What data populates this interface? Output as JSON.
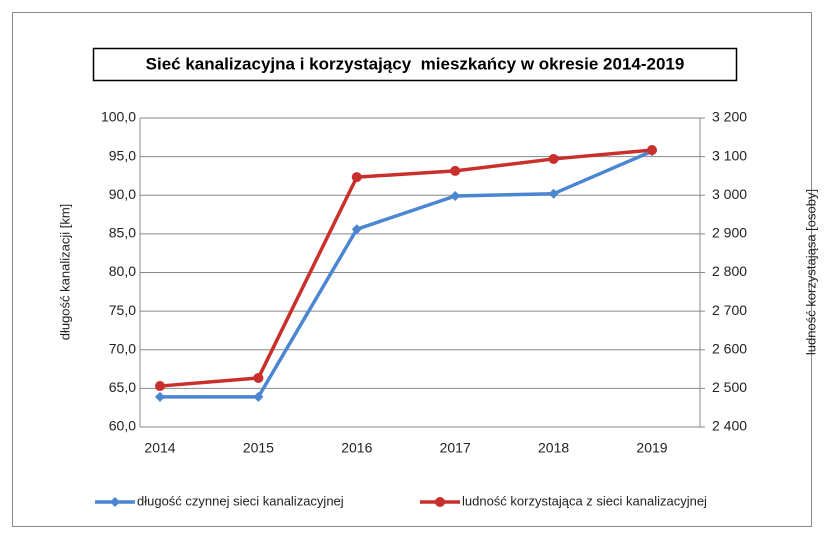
{
  "chart_data": {
    "type": "line",
    "title": "Sieć kanalizacyjna i korzystający  mieszkańcy w okresie 2014-2019",
    "y_label": "długość kanalizacji [km]",
    "y2_label": "ludność korzystająsa [osoby]",
    "categories": [
      "2014",
      "2015",
      "2016",
      "2017",
      "2018",
      "2019"
    ],
    "series": [
      {
        "name": "długość czynnej sieci kanalizacyjnej",
        "color": "#4a86d1",
        "marker": "diamond",
        "values": [
          63.9,
          63.9,
          85.6,
          89.9,
          90.2,
          95.7
        ]
      },
      {
        "name": "ludność korzystająca z  sieci kanalizacyjnej",
        "color": "#c9302c",
        "marker": "circle",
        "axis": "y2",
        "values": [
          2506,
          2527,
          3047,
          3063,
          3094,
          3117
        ]
      }
    ],
    "ylim": [
      60,
      100
    ],
    "yticks": [
      {
        "value": 60,
        "label": "60,0"
      },
      {
        "value": 65,
        "label": "65,0"
      },
      {
        "value": 70,
        "label": "70,0"
      },
      {
        "value": 75,
        "label": "75,0"
      },
      {
        "value": 80,
        "label": "80,0"
      },
      {
        "value": 85,
        "label": "85,0"
      },
      {
        "value": 90,
        "label": "90,0"
      },
      {
        "value": 95,
        "label": "95,0"
      },
      {
        "value": 100,
        "label": "100,0"
      }
    ],
    "y2lim": [
      2400,
      3200
    ],
    "y2ticks": [
      {
        "value": 2400,
        "label": "2 400"
      },
      {
        "value": 2500,
        "label": "2 500"
      },
      {
        "value": 2600,
        "label": "2 600"
      },
      {
        "value": 2700,
        "label": "2 700"
      },
      {
        "value": 2800,
        "label": "2 800"
      },
      {
        "value": 2900,
        "label": "2 900"
      },
      {
        "value": 3000,
        "label": "3 000"
      },
      {
        "value": 3100,
        "label": "3 100"
      },
      {
        "value": 3200,
        "label": "3 200"
      }
    ],
    "grid": true,
    "legend": "bottom"
  }
}
